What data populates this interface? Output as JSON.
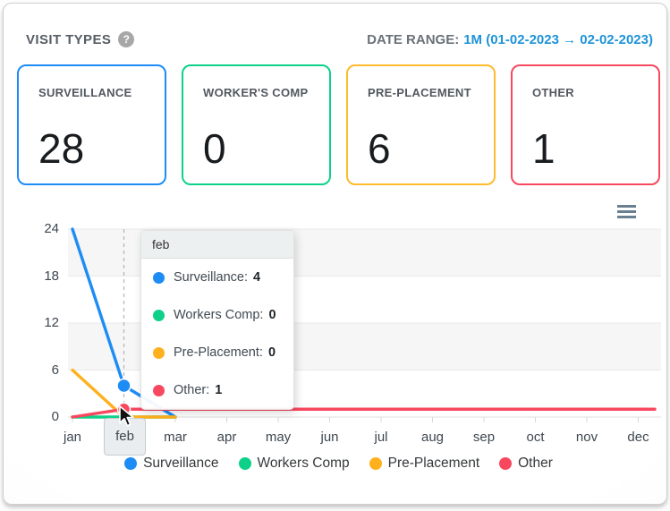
{
  "header": {
    "title": "VISIT TYPES",
    "help_icon": "question-mark",
    "date_range_label": "DATE RANGE:",
    "date_range_value": "1M (01-02-2023 → 02-02-2023)"
  },
  "summary_cards": [
    {
      "label": "SURVEILLANCE",
      "value": "28",
      "color": "#1e8cf5"
    },
    {
      "label": "WORKER'S COMP",
      "value": "0",
      "color": "#0ed189"
    },
    {
      "label": "PRE-PLACEMENT",
      "value": "6",
      "color": "#fdbb2d"
    },
    {
      "label": "OTHER",
      "value": "1",
      "color": "#f545664"
    }
  ],
  "chart_data": {
    "type": "line",
    "categories": [
      "jan",
      "feb",
      "mar",
      "apr",
      "may",
      "jun",
      "jul",
      "aug",
      "sep",
      "oct",
      "nov",
      "dec"
    ],
    "yticks": [
      0,
      6,
      12,
      18,
      24
    ],
    "ylim": [
      0,
      24
    ],
    "xlabel": "",
    "ylabel": "",
    "grid": "horizontal-bands",
    "legend_position": "bottom",
    "highlighted_category": "feb",
    "highlighted_index": 1,
    "series": [
      {
        "name": "Surveillance",
        "color": "#1e8cf5",
        "values": [
          24,
          4,
          0
        ]
      },
      {
        "name": "Workers Comp",
        "color": "#0ed189",
        "values": [
          0,
          0,
          0
        ]
      },
      {
        "name": "Pre-Placement",
        "color": "#ffb01e",
        "values": [
          6,
          0,
          0
        ]
      },
      {
        "name": "Other",
        "color": "#f8485f",
        "values": [
          0,
          1,
          1,
          1,
          1,
          1,
          1,
          1,
          1,
          1,
          1,
          1
        ]
      }
    ]
  },
  "tooltip": {
    "title": "feb",
    "rows": [
      {
        "label": "Surveillance:",
        "value": "4",
        "color": "#1e8cf5"
      },
      {
        "label": "Workers Comp:",
        "value": "0",
        "color": "#0ed189"
      },
      {
        "label": "Pre-Placement:",
        "value": "0",
        "color": "#ffb01e"
      },
      {
        "label": "Other:",
        "value": "1",
        "color": "#f8485f"
      }
    ]
  },
  "legend": [
    {
      "label": "Surveillance",
      "color": "#1e8cf5"
    },
    {
      "label": "Workers Comp",
      "color": "#0ed189"
    },
    {
      "label": "Pre-Placement",
      "color": "#ffb01e"
    },
    {
      "label": "Other",
      "color": "#f8485f"
    }
  ]
}
